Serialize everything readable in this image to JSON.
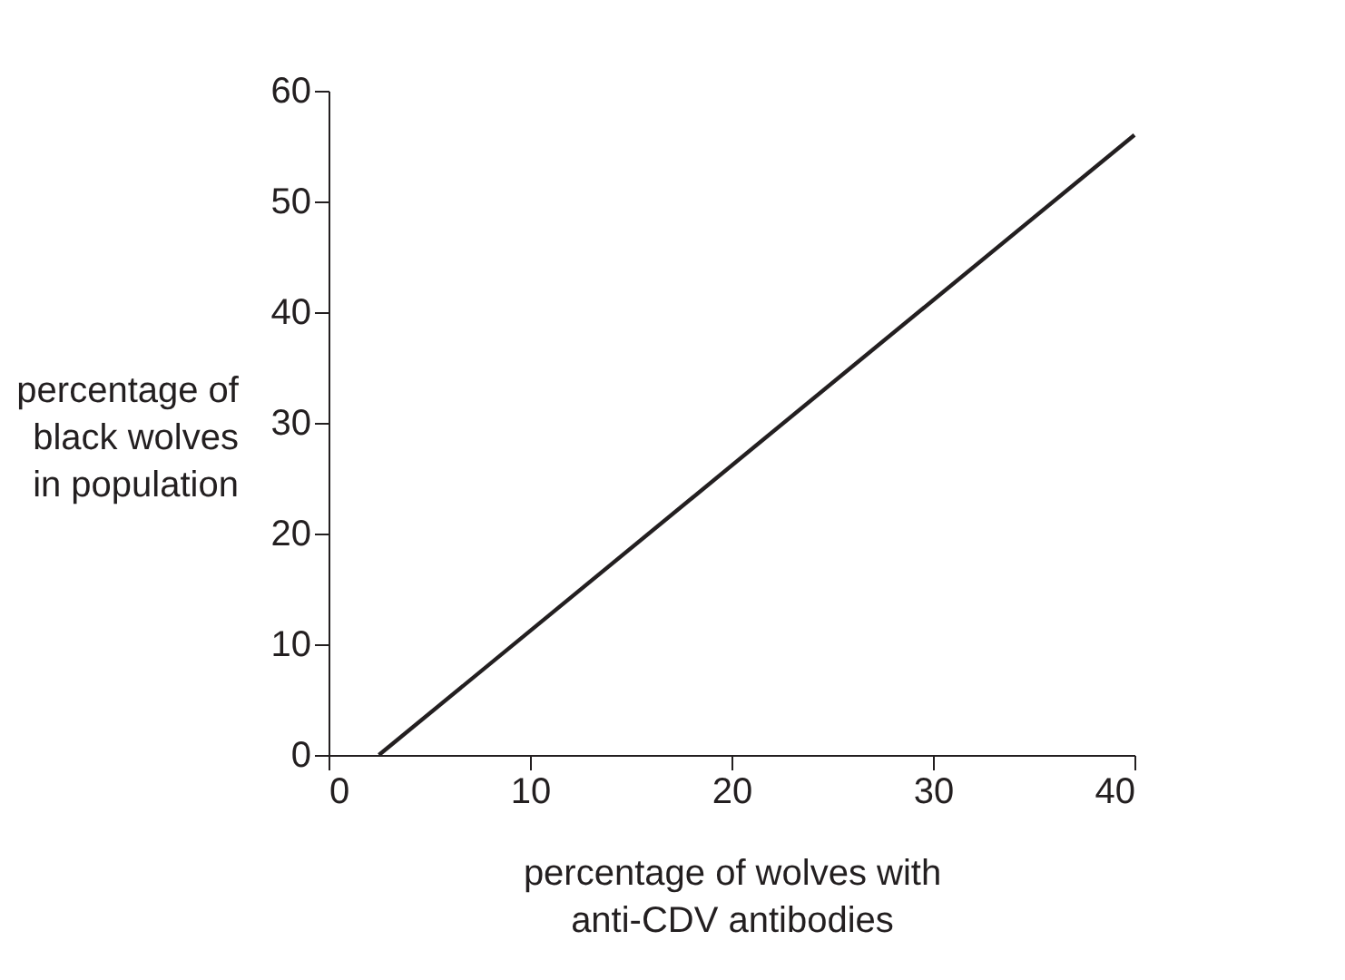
{
  "chart_data": {
    "type": "line",
    "xlabel": "percentage of wolves with\nanti-CDV antibodies",
    "ylabel": "percentage of\nblack wolves\nin population",
    "x": [
      2.5,
      40
    ],
    "series": [
      {
        "color": "#231f20",
        "values": [
          0,
          56
        ]
      }
    ],
    "xlim": [
      0,
      40
    ],
    "xticks": [
      0,
      10,
      20,
      30,
      40
    ],
    "ylim": [
      0,
      60
    ],
    "yticks": [
      0,
      10,
      20,
      30,
      40,
      50,
      60
    ],
    "grid": false,
    "legend": false,
    "marker": "none",
    "line_style": "solid"
  }
}
